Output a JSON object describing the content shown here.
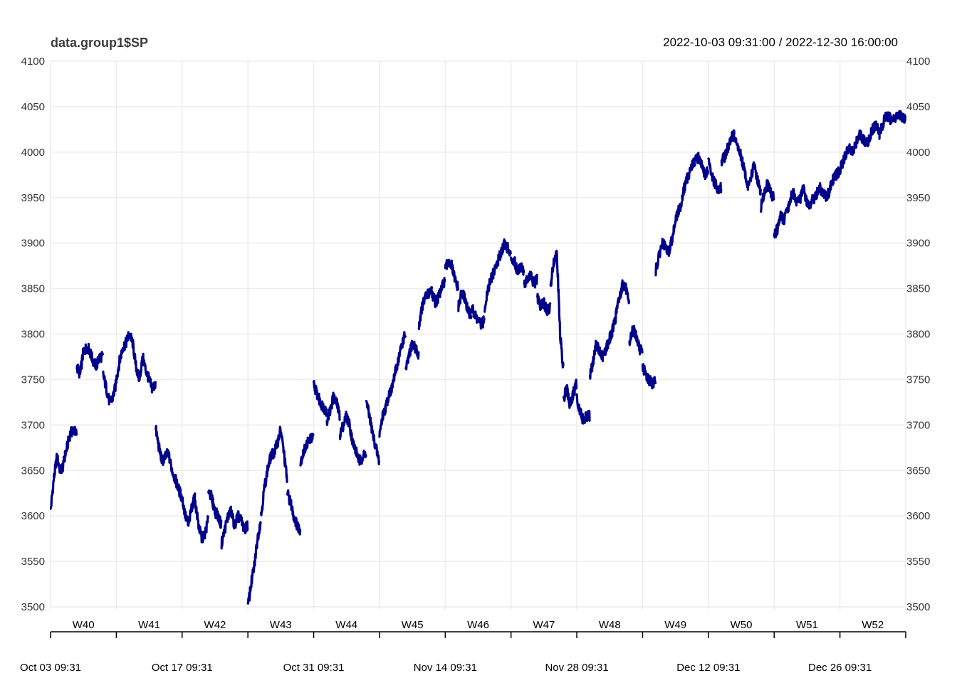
{
  "chart_data": {
    "type": "line",
    "title": "data.group1$SP",
    "subtitle": "2022-10-03 09:31:00 / 2022-12-30 16:00:00",
    "ylim": [
      3500,
      4100
    ],
    "y_ticks": [
      3500,
      3550,
      3600,
      3650,
      3700,
      3750,
      3800,
      3850,
      3900,
      3950,
      4000,
      4050,
      4100
    ],
    "week_labels": [
      "W40",
      "W41",
      "W42",
      "W43",
      "W44",
      "W45",
      "W46",
      "W47",
      "W48",
      "W49",
      "W50",
      "W51",
      "W52"
    ],
    "date_labels": [
      "Oct 03 09:31",
      "Oct 17 09:31",
      "Oct 31 09:31",
      "Nov 14 09:31",
      "Nov 28 09:31",
      "Dec 12 09:31",
      "Dec 26 09:31"
    ],
    "grid": true,
    "line_color": "#00008B",
    "series": [
      {
        "name": "",
        "days": [
          {
            "date": "2022-10-03",
            "values": [
              3605,
              3640,
              3665,
              3650,
              3655
            ]
          },
          {
            "date": "2022-10-04",
            "values": [
              3660,
              3675,
              3690,
              3695,
              3690
            ]
          },
          {
            "date": "2022-10-05",
            "values": [
              3765,
              3755,
              3780,
              3785,
              3783
            ]
          },
          {
            "date": "2022-10-06",
            "values": [
              3780,
              3770,
              3765,
              3775,
              3775
            ]
          },
          {
            "date": "2022-10-07",
            "values": [
              3755,
              3740,
              3725,
              3730,
              3745
            ]
          },
          {
            "date": "2022-10-10",
            "values": [
              3750,
              3770,
              3785,
              3790,
              3800
            ]
          },
          {
            "date": "2022-10-11",
            "values": [
              3800,
              3790,
              3765,
              3750,
              3770
            ]
          },
          {
            "date": "2022-10-12",
            "values": [
              3775,
              3760,
              3750,
              3740,
              3745
            ]
          },
          {
            "date": "2022-10-13",
            "values": [
              3695,
              3675,
              3660,
              3665,
              3670
            ]
          },
          {
            "date": "2022-10-14",
            "values": [
              3665,
              3650,
              3640,
              3630,
              3620
            ]
          },
          {
            "date": "2022-10-17",
            "values": [
              3620,
              3600,
              3590,
              3610,
              3620
            ]
          },
          {
            "date": "2022-10-18",
            "values": [
              3615,
              3590,
              3575,
              3580,
              3595
            ]
          },
          {
            "date": "2022-10-19",
            "values": [
              3630,
              3620,
              3605,
              3600,
              3590
            ]
          },
          {
            "date": "2022-10-20",
            "values": [
              3570,
              3585,
              3600,
              3605,
              3590
            ]
          },
          {
            "date": "2022-10-21",
            "values": [
              3590,
              3600,
              3595,
              3585,
              3590
            ]
          },
          {
            "date": "2022-10-24",
            "values": [
              3500,
              3525,
              3545,
              3575,
              3595
            ]
          },
          {
            "date": "2022-10-25",
            "values": [
              3600,
              3630,
              3650,
              3665,
              3670
            ]
          },
          {
            "date": "2022-10-26",
            "values": [
              3670,
              3680,
              3695,
              3670,
              3640
            ]
          },
          {
            "date": "2022-10-27",
            "values": [
              3625,
              3615,
              3600,
              3590,
              3585
            ]
          },
          {
            "date": "2022-10-28",
            "values": [
              3660,
              3670,
              3680,
              3685,
              3685
            ]
          },
          {
            "date": "2022-10-31",
            "values": [
              3745,
              3735,
              3725,
              3720,
              3715
            ]
          },
          {
            "date": "2022-11-01",
            "values": [
              3705,
              3715,
              3730,
              3725,
              3710
            ]
          },
          {
            "date": "2022-11-02",
            "values": [
              3690,
              3700,
              3710,
              3700,
              3680
            ]
          },
          {
            "date": "2022-11-03",
            "values": [
              3680,
              3670,
              3660,
              3665,
              3670
            ]
          },
          {
            "date": "2022-11-04",
            "values": [
              3725,
              3710,
              3690,
              3675,
              3660
            ]
          },
          {
            "date": "2022-11-07",
            "values": [
              3690,
              3710,
              3720,
              3735,
              3740
            ]
          },
          {
            "date": "2022-11-08",
            "values": [
              3745,
              3760,
              3775,
              3790,
              3800
            ]
          },
          {
            "date": "2022-11-09",
            "values": [
              3760,
              3775,
              3790,
              3785,
              3775
            ]
          },
          {
            "date": "2022-11-10",
            "values": [
              3810,
              3830,
              3840,
              3845,
              3850
            ]
          },
          {
            "date": "2022-11-11",
            "values": [
              3845,
              3835,
              3840,
              3850,
              3860
            ]
          },
          {
            "date": "2022-11-14",
            "values": [
              3870,
              3880,
              3875,
              3860,
              3850
            ]
          },
          {
            "date": "2022-11-15",
            "values": [
              3830,
              3845,
              3840,
              3825,
              3820
            ]
          },
          {
            "date": "2022-11-16",
            "values": [
              3830,
              3820,
              3815,
              3810,
              3815
            ]
          },
          {
            "date": "2022-11-17",
            "values": [
              3830,
              3850,
              3860,
              3870,
              3880
            ]
          },
          {
            "date": "2022-11-18",
            "values": [
              3880,
              3890,
              3900,
              3895,
              3885
            ]
          },
          {
            "date": "2022-11-21",
            "values": [
              3885,
              3880,
              3870,
              3875,
              3870
            ]
          },
          {
            "date": "2022-11-22",
            "values": [
              3855,
              3860,
              3865,
              3855,
              3860
            ]
          },
          {
            "date": "2022-11-23",
            "values": [
              3840,
              3830,
              3835,
              3825,
              3830
            ]
          },
          {
            "date": "2022-11-24",
            "values": [
              3850,
              3880,
              3890,
              3800,
              3760
            ]
          },
          {
            "date": "2022-11-25",
            "values": [
              3730,
              3740,
              3720,
              3735,
              3745
            ]
          },
          {
            "date": "2022-11-28",
            "values": [
              3730,
              3715,
              3705,
              3710,
              3710
            ]
          },
          {
            "date": "2022-11-29",
            "values": [
              3755,
              3770,
              3790,
              3780,
              3775
            ]
          },
          {
            "date": "2022-11-30",
            "values": [
              3775,
              3785,
              3795,
              3805,
              3820
            ]
          },
          {
            "date": "2022-12-01",
            "values": [
              3825,
              3840,
              3855,
              3850,
              3830
            ]
          },
          {
            "date": "2022-12-02",
            "values": [
              3790,
              3805,
              3800,
              3785,
              3780
            ]
          },
          {
            "date": "2022-12-05",
            "values": [
              3765,
              3755,
              3750,
              3745,
              3750
            ]
          },
          {
            "date": "2022-12-06",
            "values": [
              3870,
              3885,
              3900,
              3895,
              3890
            ]
          },
          {
            "date": "2022-12-07",
            "values": [
              3890,
              3905,
              3925,
              3935,
              3945
            ]
          },
          {
            "date": "2022-12-08",
            "values": [
              3950,
              3965,
              3975,
              3985,
              3990
            ]
          },
          {
            "date": "2022-12-09",
            "values": [
              3990,
              3995,
              3985,
              3975,
              3980
            ]
          },
          {
            "date": "2022-12-12",
            "values": [
              3990,
              3975,
              3965,
              3960,
              3960
            ]
          },
          {
            "date": "2022-12-13",
            "values": [
              3990,
              3995,
              4005,
              4015,
              4020
            ]
          },
          {
            "date": "2022-12-14",
            "values": [
              4015,
              4005,
              3995,
              3980,
              3965
            ]
          },
          {
            "date": "2022-12-15",
            "values": [
              3960,
              3975,
              3985,
              3970,
              3955
            ]
          },
          {
            "date": "2022-12-16",
            "values": [
              3940,
              3955,
              3965,
              3955,
              3950
            ]
          },
          {
            "date": "2022-12-19",
            "values": [
              3910,
              3915,
              3930,
              3925,
              3935
            ]
          },
          {
            "date": "2022-12-20",
            "values": [
              3935,
              3950,
              3955,
              3945,
              3950
            ]
          },
          {
            "date": "2022-12-21",
            "values": [
              3950,
              3960,
              3945,
              3940,
              3950
            ]
          },
          {
            "date": "2022-12-22",
            "values": [
              3945,
              3955,
              3960,
              3955,
              3950
            ]
          },
          {
            "date": "2022-12-23",
            "values": [
              3950,
              3960,
              3970,
              3975,
              3980
            ]
          },
          {
            "date": "2022-12-26",
            "values": [
              3980,
              3990,
              4000,
              4005,
              4000
            ]
          },
          {
            "date": "2022-12-27",
            "values": [
              4000,
              4010,
              4020,
              4015,
              4010
            ]
          },
          {
            "date": "2022-12-28",
            "values": [
              4010,
              4015,
              4025,
              4030,
              4025
            ]
          },
          {
            "date": "2022-12-29",
            "values": [
              4020,
              4030,
              4040,
              4038,
              4035
            ]
          },
          {
            "date": "2022-12-30",
            "values": [
              4038,
              4039,
              4040,
              4039,
              4038
            ]
          }
        ]
      }
    ]
  }
}
